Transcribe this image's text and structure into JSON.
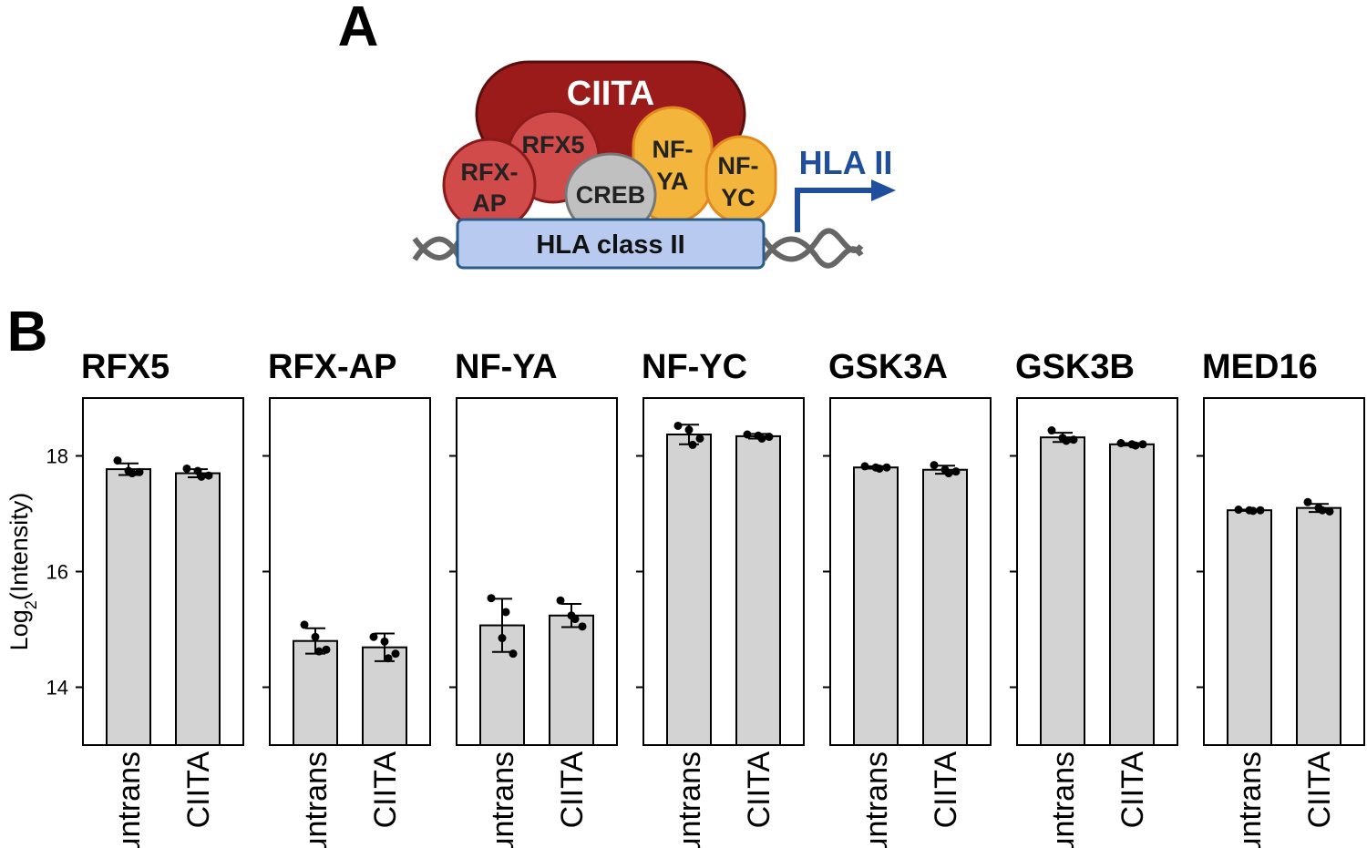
{
  "panel_labels": [
    "A",
    "B"
  ],
  "diagram": {
    "complex": "CIITA",
    "factors": {
      "rfx5": [
        "RFX5"
      ],
      "rfxap": [
        "RFX-",
        "AP"
      ],
      "creb": [
        "CREB"
      ],
      "nfya": [
        "NF-",
        "YA"
      ],
      "nfyc": [
        "NF-",
        "YC"
      ]
    },
    "promoter": "HLA class II",
    "output": "HLA II"
  },
  "chart_data": [
    {
      "type": "bar",
      "title": "RFX5",
      "ylabel": [
        "Log",
        "2",
        "(Intensity)"
      ],
      "categories": [
        "untrans",
        "CIITA"
      ],
      "values": [
        17.77,
        17.7
      ],
      "errors": [
        0.1,
        0.07
      ],
      "points": [
        [
          17.92,
          17.74,
          17.72,
          17.7
        ],
        [
          17.78,
          17.74,
          17.66,
          17.64
        ]
      ],
      "color": "#d3d3d3",
      "ylim": [
        13,
        19
      ],
      "yticks": [
        14,
        16,
        18
      ]
    },
    {
      "type": "bar",
      "title": "RFX-AP",
      "categories": [
        "untrans",
        "CIITA"
      ],
      "values": [
        14.8,
        14.69
      ],
      "errors": [
        0.22,
        0.24
      ],
      "points": [
        [
          15.08,
          14.87,
          14.65,
          14.62
        ],
        [
          14.87,
          14.79,
          14.58,
          14.5
        ]
      ],
      "color": "#d3d3d3",
      "ylim": [
        13,
        19
      ],
      "yticks": [
        14,
        16,
        18
      ]
    },
    {
      "type": "bar",
      "title": "NF-YA",
      "categories": [
        "untrans",
        "CIITA"
      ],
      "values": [
        15.07,
        15.24
      ],
      "errors": [
        0.46,
        0.2
      ],
      "points": [
        [
          15.54,
          14.85,
          14.58,
          15.3
        ],
        [
          15.5,
          15.24,
          15.05,
          15.18
        ]
      ],
      "color": "#d3d3d3",
      "ylim": [
        13,
        19
      ],
      "yticks": [
        14,
        16,
        18
      ]
    },
    {
      "type": "bar",
      "title": "NF-YC",
      "categories": [
        "untrans",
        "CIITA"
      ],
      "values": [
        18.37,
        18.34
      ],
      "errors": [
        0.17,
        0.04
      ],
      "points": [
        [
          18.52,
          18.45,
          18.3,
          18.19
        ],
        [
          18.37,
          18.35,
          18.33,
          18.3
        ]
      ],
      "color": "#d3d3d3",
      "ylim": [
        13,
        19
      ],
      "yticks": [
        14,
        16,
        18
      ]
    },
    {
      "type": "bar",
      "title": "GSK3A",
      "categories": [
        "untrans",
        "CIITA"
      ],
      "values": [
        17.8,
        17.76
      ],
      "errors": [
        0.02,
        0.07
      ],
      "points": [
        [
          17.82,
          17.8,
          17.8,
          17.78
        ],
        [
          17.84,
          17.76,
          17.73,
          17.7
        ]
      ],
      "color": "#d3d3d3",
      "ylim": [
        13,
        19
      ],
      "yticks": [
        14,
        16,
        18
      ]
    },
    {
      "type": "bar",
      "title": "GSK3B",
      "categories": [
        "untrans",
        "CIITA"
      ],
      "values": [
        18.32,
        18.2
      ],
      "errors": [
        0.08,
        0.02
      ],
      "points": [
        [
          18.44,
          18.31,
          18.28,
          18.26
        ],
        [
          18.22,
          18.2,
          18.2,
          18.18
        ]
      ],
      "color": "#d3d3d3",
      "ylim": [
        13,
        19
      ],
      "yticks": [
        14,
        16,
        18
      ]
    },
    {
      "type": "bar",
      "title": "MED16",
      "categories": [
        "untrans",
        "CIITA"
      ],
      "values": [
        17.06,
        17.1
      ],
      "errors": [
        0.01,
        0.07
      ],
      "points": [
        [
          17.07,
          17.06,
          17.06,
          17.05
        ],
        [
          17.2,
          17.1,
          17.04,
          17.06
        ]
      ],
      "color": "#d3d3d3",
      "ylim": [
        13,
        19
      ],
      "yticks": [
        14,
        16,
        18
      ]
    }
  ]
}
